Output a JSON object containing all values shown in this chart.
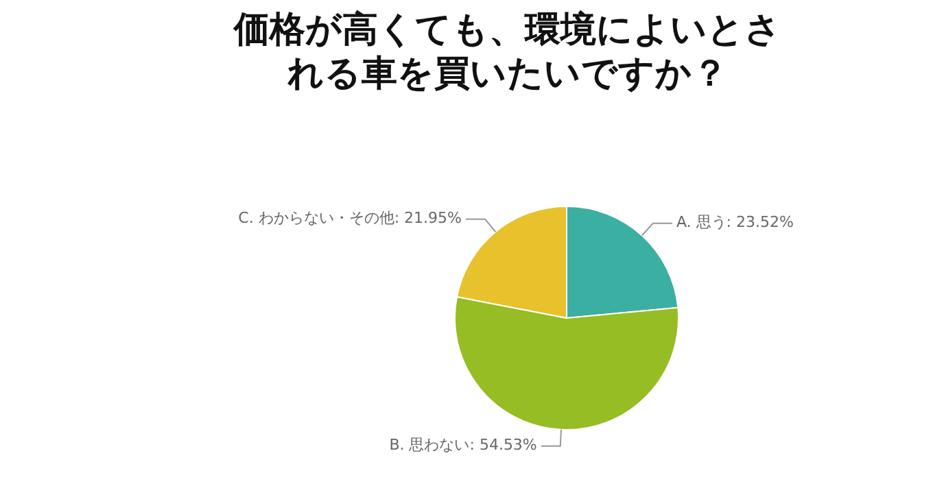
{
  "chart_data": {
    "type": "pie",
    "title": "価格が高くても、環境によいとされる車を買いたいですか？",
    "categories": [
      "A. 思う",
      "B. 思わない",
      "C. わからない・その他"
    ],
    "values": [
      23.52,
      54.53,
      21.95
    ],
    "value_labels": [
      "23.52%",
      "54.53%",
      "21.95%"
    ],
    "colors": [
      "#3aafa2",
      "#97bd24",
      "#e8c22c"
    ],
    "legend": false
  }
}
